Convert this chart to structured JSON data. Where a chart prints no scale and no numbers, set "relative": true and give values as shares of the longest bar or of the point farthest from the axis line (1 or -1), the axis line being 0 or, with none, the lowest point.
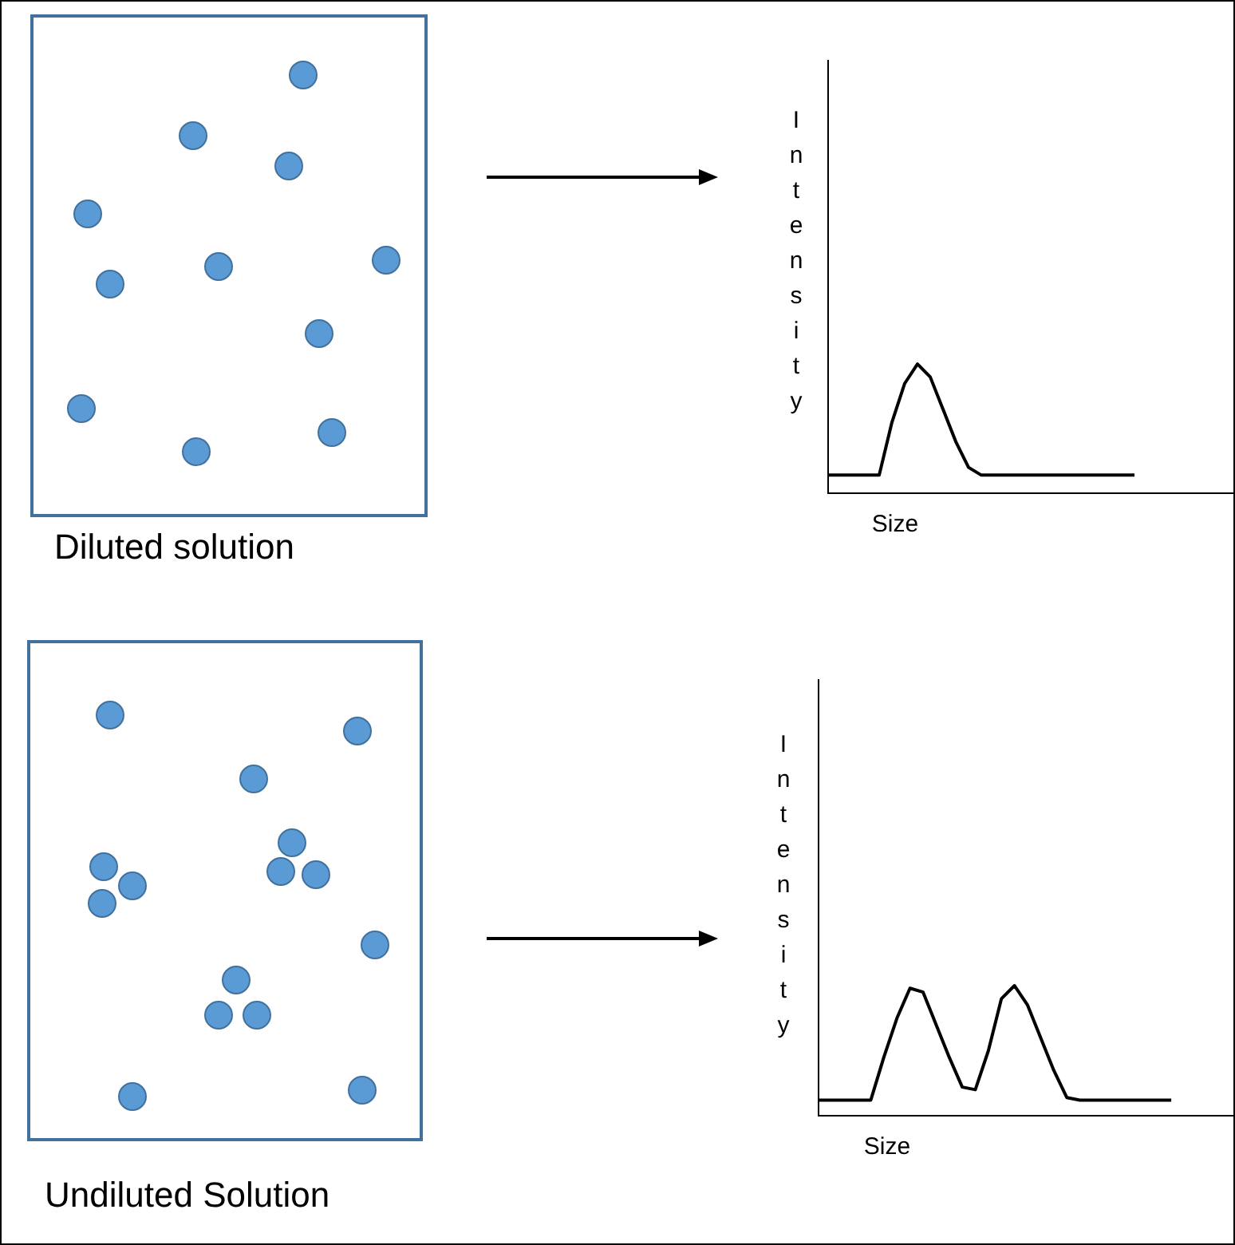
{
  "chart_data": [
    {
      "type": "line",
      "relative": true,
      "xlabel": "Size",
      "ylabel": "Intensity",
      "annotations": [
        "Diluted solution"
      ],
      "marker": "none",
      "grid": false,
      "legend": false,
      "tick_labels": false,
      "categories": [
        null,
        null,
        null,
        null,
        null,
        null,
        null,
        null,
        null,
        null,
        null,
        null,
        null,
        null,
        null,
        null,
        null,
        null,
        null,
        null,
        null,
        null,
        null,
        null,
        null,
        null,
        null,
        null,
        null,
        null,
        null,
        null,
        null
      ],
      "series": [
        {
          "color": "#000000",
          "values": [
            0.14,
            0.14,
            0.14,
            0.14,
            0.14,
            0.55,
            0.85,
            1,
            0.9,
            0.65,
            0.4,
            0.2,
            0.14,
            0.14,
            0.14,
            0.14,
            0.14,
            0.14,
            0.14,
            0.14,
            0.14,
            0.14,
            0.14,
            0.14,
            0.14,
            null,
            null,
            null,
            null,
            null,
            null,
            null,
            null
          ]
        }
      ]
    },
    {
      "type": "line",
      "relative": true,
      "xlabel": "Size",
      "ylabel": "Intensity",
      "annotations": [
        "Undiluted Solution"
      ],
      "marker": "none",
      "grid": false,
      "legend": false,
      "tick_labels": false,
      "categories": [
        null,
        null,
        null,
        null,
        null,
        null,
        null,
        null,
        null,
        null,
        null,
        null,
        null,
        null,
        null,
        null,
        null,
        null,
        null,
        null,
        null,
        null,
        null,
        null,
        null,
        null,
        null,
        null,
        null,
        null,
        null,
        null,
        null
      ],
      "series": [
        {
          "color": "#000000",
          "values": [
            0.12,
            0.12,
            0.12,
            0.12,
            0.12,
            0.45,
            0.75,
            0.98,
            0.95,
            0.7,
            0.45,
            0.22,
            0.2,
            0.5,
            0.9,
            1,
            0.85,
            0.6,
            0.35,
            0.14,
            0.12,
            0.12,
            0.12,
            0.12,
            0.12,
            0.12,
            0.12,
            0.12,
            null,
            null,
            null,
            null,
            null
          ]
        }
      ]
    }
  ]
}
